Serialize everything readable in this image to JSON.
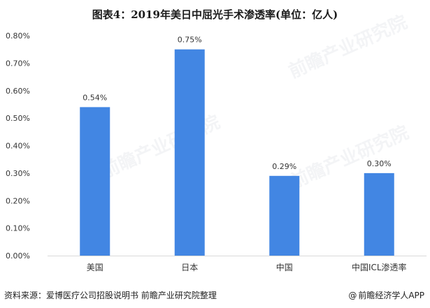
{
  "title": "图表4：2019年美日中屈光手术渗透率(单位：亿人)",
  "footer": {
    "source": "资料来源：爱博医疗公司招股说明书  前瞻产业研究院整理",
    "brand": "前瞻经济学人APP",
    "brand_symbol": "@"
  },
  "watermark": "前瞻产业研究院",
  "colors": {
    "bar": "#4286e3",
    "axis": "#d9d9d9",
    "text": "#333333"
  },
  "chart_data": {
    "type": "bar",
    "title": "图表4：2019年美日中屈光手术渗透率(单位：亿人)",
    "categories": [
      "美国",
      "日本",
      "中国",
      "中国ICL渗透率"
    ],
    "values": [
      0.54,
      0.75,
      0.29,
      0.3
    ],
    "data_labels": [
      "0.54%",
      "0.75%",
      "0.29%",
      "0.30%"
    ],
    "unit": "%",
    "ylim": [
      0,
      0.8
    ],
    "yticks": [
      "0.00%",
      "0.10%",
      "0.20%",
      "0.30%",
      "0.40%",
      "0.50%",
      "0.60%",
      "0.70%",
      "0.80%"
    ],
    "grid": false,
    "legend": "none",
    "xlabel": "",
    "ylabel": ""
  }
}
